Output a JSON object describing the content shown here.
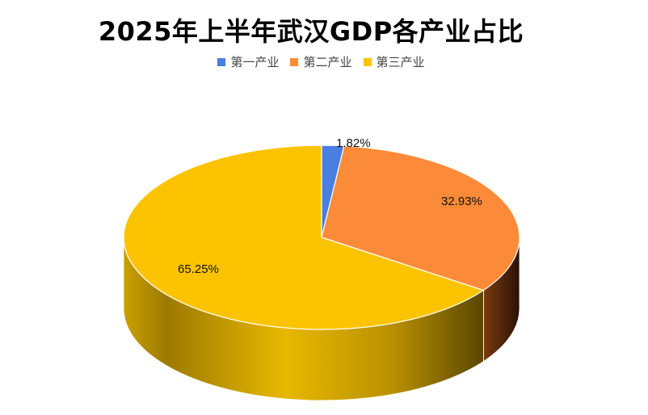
{
  "colors": {
    "primary": "#4a7ee0",
    "secondary": "#fb8b38",
    "tertiary": "#fcc400"
  },
  "chart_data": {
    "type": "pie",
    "title": "2025年上半年武汉GDP各产业占比",
    "legend_position": "top",
    "style": "3d",
    "slices": [
      {
        "label": "第一产业",
        "value": 1.82,
        "display": "1.82%"
      },
      {
        "label": "第二产业",
        "value": 32.93,
        "display": "32.93%"
      },
      {
        "label": "第三产业",
        "value": 65.25,
        "display": "65.25%"
      }
    ]
  }
}
